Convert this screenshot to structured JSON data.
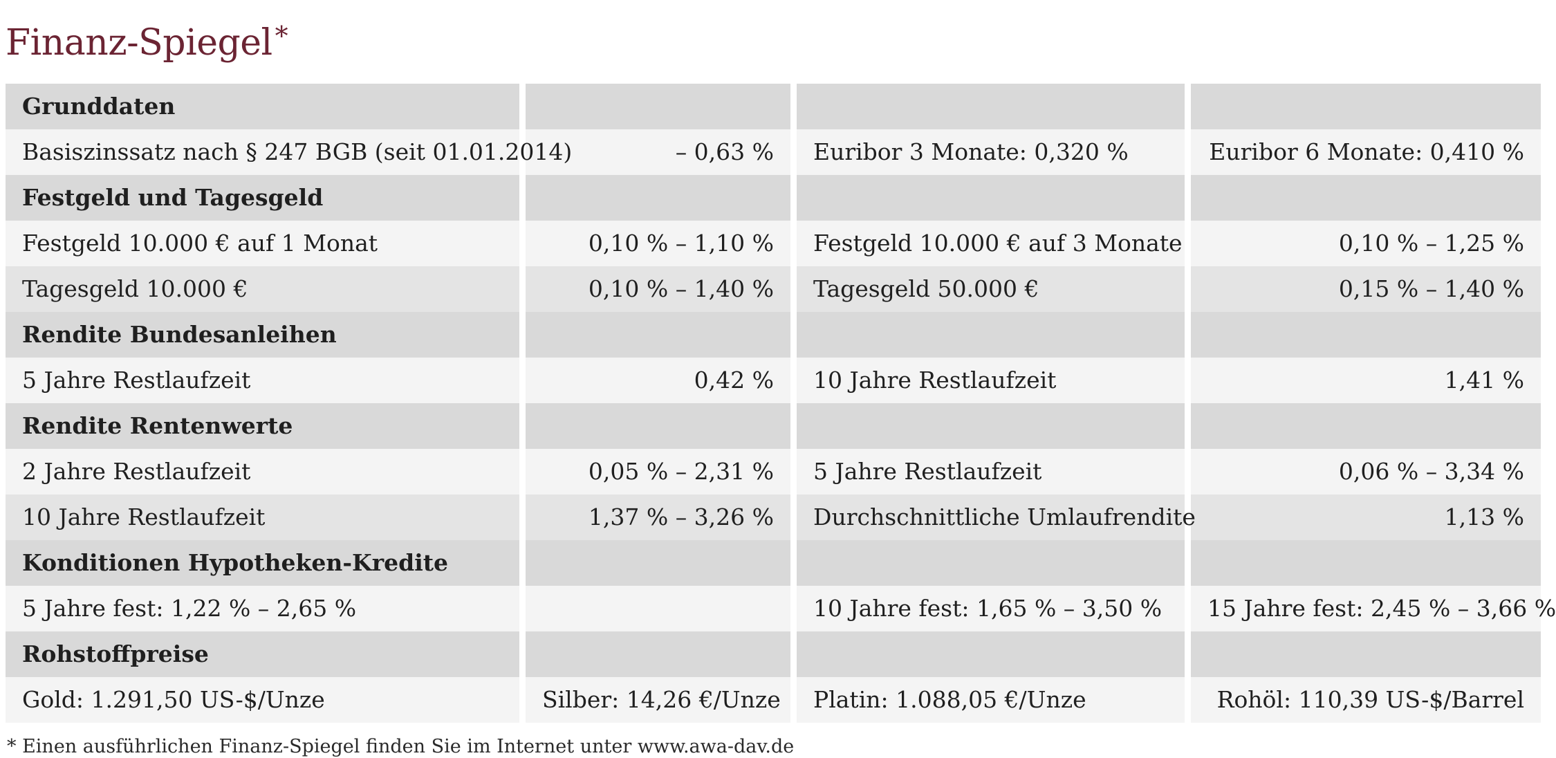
{
  "title": "Finanz-Spiegel",
  "title_mark": "*",
  "rows": [
    {
      "type": "section",
      "cells": [
        "Grunddaten",
        "",
        "",
        ""
      ]
    },
    {
      "type": "light",
      "cells": [
        "Basiszinssatz nach § 247 BGB (seit 01.01.2014)",
        "– 0,63 %",
        "Euribor 3 Monate: 0,320 %",
        "Euribor 6 Monate: 0,410 %"
      ]
    },
    {
      "type": "section",
      "cells": [
        "Festgeld und Tagesgeld",
        "",
        "",
        ""
      ]
    },
    {
      "type": "light",
      "cells": [
        "Festgeld 10.000 € auf 1 Monat",
        "0,10 % – 1,10 %",
        "Festgeld 10.000 € auf 3 Monate",
        "0,10 % – 1,25 %"
      ]
    },
    {
      "type": "mid",
      "cells": [
        "Tagesgeld 10.000 €",
        "0,10 % – 1,40 %",
        "Tagesgeld 50.000 €",
        "0,15 % – 1,40 %"
      ]
    },
    {
      "type": "section",
      "cells": [
        "Rendite Bundesanleihen",
        "",
        "",
        ""
      ]
    },
    {
      "type": "light",
      "cells": [
        "5 Jahre Restlaufzeit",
        "0,42 %",
        "10 Jahre Restlaufzeit",
        "1,41 %"
      ]
    },
    {
      "type": "section",
      "cells": [
        "Rendite Rentenwerte",
        "",
        "",
        ""
      ]
    },
    {
      "type": "light",
      "cells": [
        "2 Jahre Restlaufzeit",
        "0,05 % – 2,31 %",
        "5 Jahre Restlaufzeit",
        "0,06 % – 3,34 %"
      ]
    },
    {
      "type": "mid",
      "cells": [
        "10 Jahre Restlaufzeit",
        "1,37 % – 3,26 %",
        "Durchschnittliche Umlaufrendite",
        "1,13 %"
      ]
    },
    {
      "type": "section",
      "cells": [
        "Konditionen Hypotheken-Kredite",
        "",
        "",
        ""
      ]
    },
    {
      "type": "light",
      "cells": [
        "5 Jahre fest: 1,22 % – 2,65 %",
        "",
        "10 Jahre fest: 1,65 % – 3,50 %",
        "15 Jahre fest: 2,45 % – 3,66 %"
      ]
    },
    {
      "type": "section",
      "cells": [
        "Rohstoffpreise",
        "",
        "",
        ""
      ]
    },
    {
      "type": "light",
      "cells": [
        "Gold: 1.291,50 US-$/Unze",
        "Silber: 14,26 €/Unze",
        "Platin: 1.088,05 €/Unze",
        "Rohöl: 110,39 US-$/Barrel"
      ]
    }
  ],
  "footnote": "* Einen ausführlichen Finanz-Spiegel finden Sie im Internet unter www.awa-dav.de",
  "colors": {
    "title": "#6b2433",
    "section_bg": "#d9d9d9",
    "row_light_bg": "#f4f4f4",
    "row_mid_bg": "#e4e4e4"
  }
}
